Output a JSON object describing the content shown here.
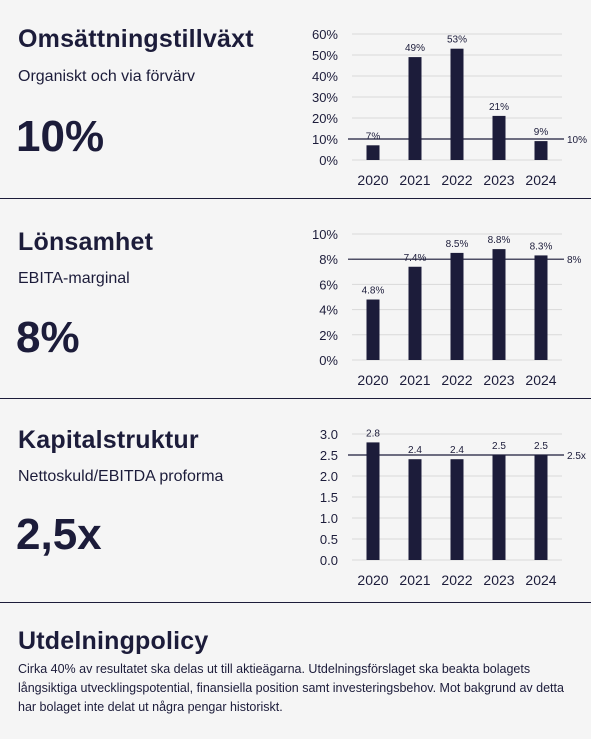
{
  "colors": {
    "bar": "#1c1c3a",
    "text": "#1c1c3a",
    "grid": "#d9d9d9",
    "background": "#f5f5f5"
  },
  "sections": [
    {
      "title": "Omsättningstillväxt",
      "subtitle": "Organiskt och via förvärv",
      "big": "10%"
    },
    {
      "title": "Lönsamhet",
      "subtitle": "EBITA-marginal",
      "big": "8%"
    },
    {
      "title": "Kapitalstruktur",
      "subtitle": "Nettoskuld/EBITDA proforma",
      "big": "2,5x"
    }
  ],
  "policy": {
    "title": "Utdelningpolicy",
    "text": "Cirka 40% av resultatet ska delas ut till aktieägarna. Utdelningsförslaget ska beakta bolagets långsiktiga utvecklingspotential, finansiella position samt investeringsbehov. Mot bakgrund av detta har bolaget inte delat ut några pengar historiskt."
  },
  "chart_data": [
    {
      "type": "bar",
      "categories": [
        "2020",
        "2021",
        "2022",
        "2023",
        "2024"
      ],
      "values": [
        7,
        49,
        53,
        21,
        9
      ],
      "data_labels": [
        "7%",
        "49%",
        "53%",
        "21%",
        "9%"
      ],
      "ylim": [
        0,
        60
      ],
      "yticks": [
        "0%",
        "10%",
        "20%",
        "30%",
        "40%",
        "50%",
        "60%"
      ],
      "ytick_values": [
        0,
        10,
        20,
        30,
        40,
        50,
        60
      ],
      "target": 10,
      "target_label": "10%",
      "grid": true
    },
    {
      "type": "bar",
      "categories": [
        "2020",
        "2021",
        "2022",
        "2023",
        "2024"
      ],
      "values": [
        4.8,
        7.4,
        8.5,
        8.8,
        8.3
      ],
      "data_labels": [
        "4.8%",
        "7.4%",
        "8.5%",
        "8.8%",
        "8.3%"
      ],
      "ylim": [
        0,
        10
      ],
      "yticks": [
        "0%",
        "2%",
        "4%",
        "6%",
        "8%",
        "10%"
      ],
      "ytick_values": [
        0,
        2,
        4,
        6,
        8,
        10
      ],
      "target": 8,
      "target_label": "8%",
      "grid": true
    },
    {
      "type": "bar",
      "categories": [
        "2020",
        "2021",
        "2022",
        "2023",
        "2024"
      ],
      "values": [
        2.8,
        2.4,
        2.4,
        2.5,
        2.5
      ],
      "data_labels": [
        "2.8",
        "2.4",
        "2.4",
        "2.5",
        "2.5"
      ],
      "ylim": [
        0,
        3
      ],
      "yticks": [
        "0.0",
        "0.5",
        "1.0",
        "1.5",
        "2.0",
        "2.5",
        "3.0"
      ],
      "ytick_values": [
        0,
        0.5,
        1,
        1.5,
        2,
        2.5,
        3
      ],
      "target": 2.5,
      "target_label": "2.5x",
      "grid": true
    }
  ]
}
